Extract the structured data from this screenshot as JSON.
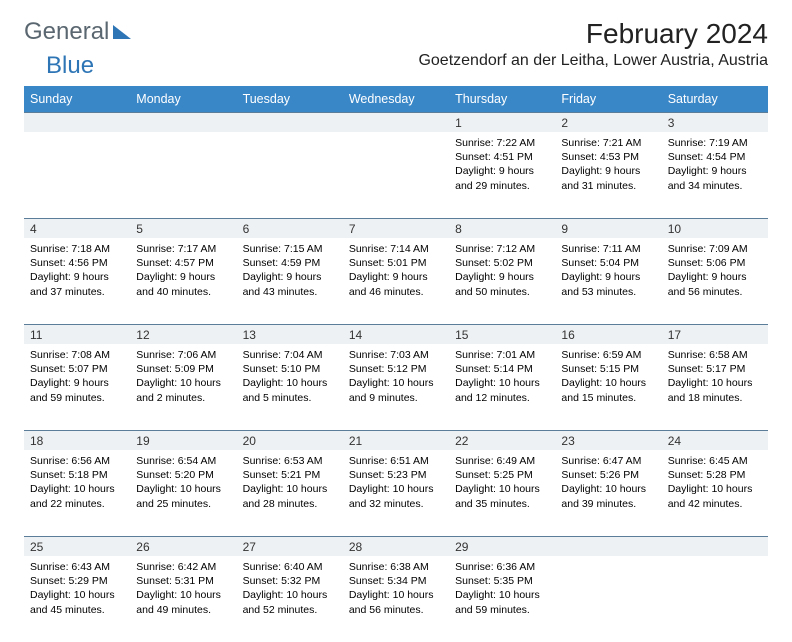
{
  "brand": {
    "part1": "General",
    "part2": "Blue"
  },
  "title": "February 2024",
  "location": "Goetzendorf an der Leitha, Lower Austria, Austria",
  "colors": {
    "header_bg": "#3a87c8",
    "header_text": "#ffffff",
    "rule": "#5b7d99",
    "daynum_bg": "#eef1f3",
    "logo_gray": "#5a6770",
    "logo_blue": "#2e75b6",
    "background": "#ffffff"
  },
  "typography": {
    "title_fontsize": 28,
    "location_fontsize": 16,
    "header_fontsize": 12.5,
    "body_fontsize": 10.5
  },
  "dayHeaders": [
    "Sunday",
    "Monday",
    "Tuesday",
    "Wednesday",
    "Thursday",
    "Friday",
    "Saturday"
  ],
  "weeks": [
    [
      null,
      null,
      null,
      null,
      {
        "day": "1",
        "sunrise": "Sunrise: 7:22 AM",
        "sunset": "Sunset: 4:51 PM",
        "daylight1": "Daylight: 9 hours",
        "daylight2": "and 29 minutes."
      },
      {
        "day": "2",
        "sunrise": "Sunrise: 7:21 AM",
        "sunset": "Sunset: 4:53 PM",
        "daylight1": "Daylight: 9 hours",
        "daylight2": "and 31 minutes."
      },
      {
        "day": "3",
        "sunrise": "Sunrise: 7:19 AM",
        "sunset": "Sunset: 4:54 PM",
        "daylight1": "Daylight: 9 hours",
        "daylight2": "and 34 minutes."
      }
    ],
    [
      {
        "day": "4",
        "sunrise": "Sunrise: 7:18 AM",
        "sunset": "Sunset: 4:56 PM",
        "daylight1": "Daylight: 9 hours",
        "daylight2": "and 37 minutes."
      },
      {
        "day": "5",
        "sunrise": "Sunrise: 7:17 AM",
        "sunset": "Sunset: 4:57 PM",
        "daylight1": "Daylight: 9 hours",
        "daylight2": "and 40 minutes."
      },
      {
        "day": "6",
        "sunrise": "Sunrise: 7:15 AM",
        "sunset": "Sunset: 4:59 PM",
        "daylight1": "Daylight: 9 hours",
        "daylight2": "and 43 minutes."
      },
      {
        "day": "7",
        "sunrise": "Sunrise: 7:14 AM",
        "sunset": "Sunset: 5:01 PM",
        "daylight1": "Daylight: 9 hours",
        "daylight2": "and 46 minutes."
      },
      {
        "day": "8",
        "sunrise": "Sunrise: 7:12 AM",
        "sunset": "Sunset: 5:02 PM",
        "daylight1": "Daylight: 9 hours",
        "daylight2": "and 50 minutes."
      },
      {
        "day": "9",
        "sunrise": "Sunrise: 7:11 AM",
        "sunset": "Sunset: 5:04 PM",
        "daylight1": "Daylight: 9 hours",
        "daylight2": "and 53 minutes."
      },
      {
        "day": "10",
        "sunrise": "Sunrise: 7:09 AM",
        "sunset": "Sunset: 5:06 PM",
        "daylight1": "Daylight: 9 hours",
        "daylight2": "and 56 minutes."
      }
    ],
    [
      {
        "day": "11",
        "sunrise": "Sunrise: 7:08 AM",
        "sunset": "Sunset: 5:07 PM",
        "daylight1": "Daylight: 9 hours",
        "daylight2": "and 59 minutes."
      },
      {
        "day": "12",
        "sunrise": "Sunrise: 7:06 AM",
        "sunset": "Sunset: 5:09 PM",
        "daylight1": "Daylight: 10 hours",
        "daylight2": "and 2 minutes."
      },
      {
        "day": "13",
        "sunrise": "Sunrise: 7:04 AM",
        "sunset": "Sunset: 5:10 PM",
        "daylight1": "Daylight: 10 hours",
        "daylight2": "and 5 minutes."
      },
      {
        "day": "14",
        "sunrise": "Sunrise: 7:03 AM",
        "sunset": "Sunset: 5:12 PM",
        "daylight1": "Daylight: 10 hours",
        "daylight2": "and 9 minutes."
      },
      {
        "day": "15",
        "sunrise": "Sunrise: 7:01 AM",
        "sunset": "Sunset: 5:14 PM",
        "daylight1": "Daylight: 10 hours",
        "daylight2": "and 12 minutes."
      },
      {
        "day": "16",
        "sunrise": "Sunrise: 6:59 AM",
        "sunset": "Sunset: 5:15 PM",
        "daylight1": "Daylight: 10 hours",
        "daylight2": "and 15 minutes."
      },
      {
        "day": "17",
        "sunrise": "Sunrise: 6:58 AM",
        "sunset": "Sunset: 5:17 PM",
        "daylight1": "Daylight: 10 hours",
        "daylight2": "and 18 minutes."
      }
    ],
    [
      {
        "day": "18",
        "sunrise": "Sunrise: 6:56 AM",
        "sunset": "Sunset: 5:18 PM",
        "daylight1": "Daylight: 10 hours",
        "daylight2": "and 22 minutes."
      },
      {
        "day": "19",
        "sunrise": "Sunrise: 6:54 AM",
        "sunset": "Sunset: 5:20 PM",
        "daylight1": "Daylight: 10 hours",
        "daylight2": "and 25 minutes."
      },
      {
        "day": "20",
        "sunrise": "Sunrise: 6:53 AM",
        "sunset": "Sunset: 5:21 PM",
        "daylight1": "Daylight: 10 hours",
        "daylight2": "and 28 minutes."
      },
      {
        "day": "21",
        "sunrise": "Sunrise: 6:51 AM",
        "sunset": "Sunset: 5:23 PM",
        "daylight1": "Daylight: 10 hours",
        "daylight2": "and 32 minutes."
      },
      {
        "day": "22",
        "sunrise": "Sunrise: 6:49 AM",
        "sunset": "Sunset: 5:25 PM",
        "daylight1": "Daylight: 10 hours",
        "daylight2": "and 35 minutes."
      },
      {
        "day": "23",
        "sunrise": "Sunrise: 6:47 AM",
        "sunset": "Sunset: 5:26 PM",
        "daylight1": "Daylight: 10 hours",
        "daylight2": "and 39 minutes."
      },
      {
        "day": "24",
        "sunrise": "Sunrise: 6:45 AM",
        "sunset": "Sunset: 5:28 PM",
        "daylight1": "Daylight: 10 hours",
        "daylight2": "and 42 minutes."
      }
    ],
    [
      {
        "day": "25",
        "sunrise": "Sunrise: 6:43 AM",
        "sunset": "Sunset: 5:29 PM",
        "daylight1": "Daylight: 10 hours",
        "daylight2": "and 45 minutes."
      },
      {
        "day": "26",
        "sunrise": "Sunrise: 6:42 AM",
        "sunset": "Sunset: 5:31 PM",
        "daylight1": "Daylight: 10 hours",
        "daylight2": "and 49 minutes."
      },
      {
        "day": "27",
        "sunrise": "Sunrise: 6:40 AM",
        "sunset": "Sunset: 5:32 PM",
        "daylight1": "Daylight: 10 hours",
        "daylight2": "and 52 minutes."
      },
      {
        "day": "28",
        "sunrise": "Sunrise: 6:38 AM",
        "sunset": "Sunset: 5:34 PM",
        "daylight1": "Daylight: 10 hours",
        "daylight2": "and 56 minutes."
      },
      {
        "day": "29",
        "sunrise": "Sunrise: 6:36 AM",
        "sunset": "Sunset: 5:35 PM",
        "daylight1": "Daylight: 10 hours",
        "daylight2": "and 59 minutes."
      },
      null,
      null
    ]
  ]
}
